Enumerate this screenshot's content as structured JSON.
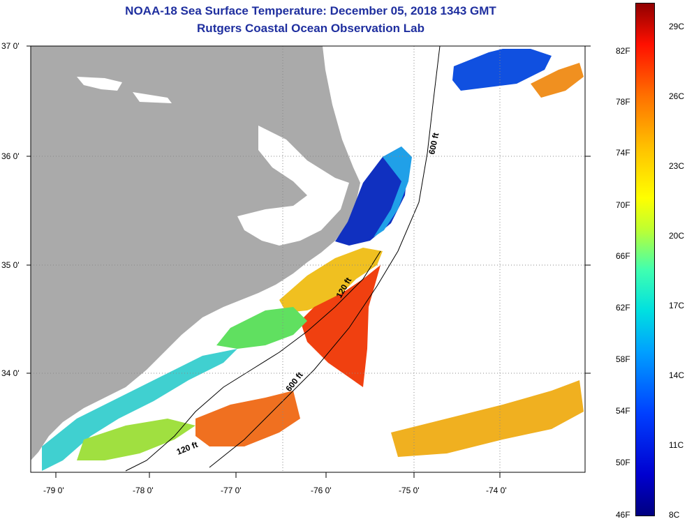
{
  "title": "NOAA-18 Sea Surface Temperature:  December 05, 2018 1343 GMT",
  "subtitle": "Rutgers Coastal Ocean Observation Lab",
  "lat_labels": [
    "37 0'",
    "36 0'",
    "35 0'",
    "34 0'"
  ],
  "lon_labels": [
    "-79 0'",
    "-78 0'",
    "-77 0'",
    "-76 0'",
    "-75 0'",
    "-74 0'"
  ],
  "isobaths": {
    "label_600a": "600 ft",
    "label_120a": "120 ft",
    "label_600b": "600 ft",
    "label_120b": "120 ft"
  },
  "colorbar": {
    "fahrenheit": [
      "82F",
      "78F",
      "74F",
      "70F",
      "66F",
      "62F",
      "58F",
      "54F",
      "50F",
      "46F"
    ],
    "celsius": [
      "29C",
      "26C",
      "23C",
      "20C",
      "17C",
      "14C",
      "11C",
      "8C"
    ]
  },
  "colors": {
    "land": "#aaaaaa",
    "title": "#1f2f9f"
  }
}
